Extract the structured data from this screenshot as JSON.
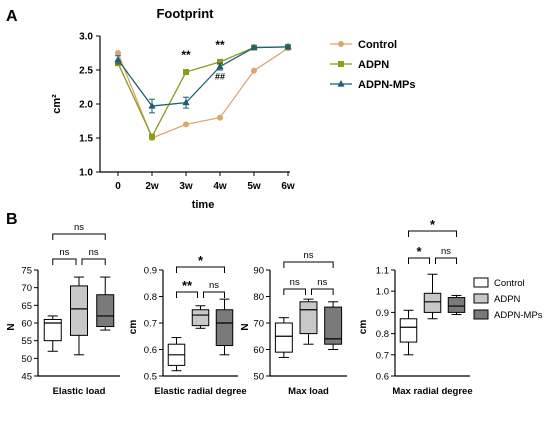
{
  "panel_a_letter": "A",
  "panel_b_letter": "B",
  "colors": {
    "control": "#D9A66F",
    "adpn": "#8C9A1E",
    "adpn_mps": "#1F5F75",
    "box_control": "#ffffff",
    "box_adpn": "#C8C8C8",
    "box_adpn_mps": "#7A7A7A"
  },
  "chart_data": [
    {
      "type": "line",
      "title": "Footprint",
      "xlabel": "time",
      "ylabel": "cm²",
      "categories": [
        "0",
        "2w",
        "3w",
        "4w",
        "5w",
        "6w"
      ],
      "ylim": [
        1.0,
        3.0
      ],
      "yticks": [
        "1.0",
        "1.5",
        "2.0",
        "2.5",
        "3.0"
      ],
      "legend_position": "right",
      "series": [
        {
          "name": "Control",
          "marker": "circle",
          "values": [
            2.75,
            1.5,
            1.7,
            1.8,
            2.49,
            2.82
          ]
        },
        {
          "name": "ADPN",
          "marker": "square",
          "values": [
            2.6,
            1.52,
            2.47,
            2.62,
            2.83,
            2.84
          ]
        },
        {
          "name": "ADPN-MPs",
          "marker": "triangle",
          "values": [
            2.65,
            1.97,
            2.02,
            2.55,
            2.83,
            2.84
          ],
          "errors": [
            0.06,
            0.1,
            0.08,
            0.05,
            0.02,
            0.02
          ]
        }
      ],
      "annotations": [
        {
          "category": "3w",
          "text": "**",
          "value": 2.72
        },
        {
          "category": "4w",
          "text": "**",
          "value": 2.87
        },
        {
          "category": "4w",
          "text": "##",
          "value": 2.42
        }
      ]
    },
    {
      "type": "box",
      "xlabel": "Elastic load",
      "ylabel": "N",
      "ylim": [
        45,
        75
      ],
      "yticks": [
        "45",
        "50",
        "55",
        "60",
        "65",
        "70",
        "75"
      ],
      "series": [
        {
          "name": "Control",
          "min": 52,
          "q1": 55,
          "median": 60,
          "q3": 61,
          "max": 62
        },
        {
          "name": "ADPN",
          "min": 51,
          "q1": 56.5,
          "median": 64,
          "q3": 70.5,
          "max": 73
        },
        {
          "name": "ADPN-MPs",
          "min": 58,
          "q1": 59,
          "median": 62,
          "q3": 68,
          "max": 73
        }
      ],
      "significance": [
        {
          "from": 0,
          "to": 1,
          "label": "ns"
        },
        {
          "from": 1,
          "to": 2,
          "label": "ns"
        },
        {
          "from": 0,
          "to": 2,
          "label": "ns"
        }
      ]
    },
    {
      "type": "box",
      "xlabel": "Elastic radial degree",
      "ylabel": "cm",
      "ylim": [
        0.5,
        0.9
      ],
      "yticks": [
        "0.5",
        "0.6",
        "0.7",
        "0.8",
        "0.9"
      ],
      "series": [
        {
          "name": "Control",
          "min": 0.52,
          "q1": 0.54,
          "median": 0.58,
          "q3": 0.62,
          "max": 0.645
        },
        {
          "name": "ADPN",
          "min": 0.68,
          "q1": 0.69,
          "median": 0.73,
          "q3": 0.75,
          "max": 0.765
        },
        {
          "name": "ADPN-MPs",
          "min": 0.58,
          "q1": 0.615,
          "median": 0.7,
          "q3": 0.75,
          "max": 0.79
        }
      ],
      "significance": [
        {
          "from": 0,
          "to": 1,
          "label": "**"
        },
        {
          "from": 1,
          "to": 2,
          "label": "ns"
        },
        {
          "from": 0,
          "to": 2,
          "label": "*"
        }
      ]
    },
    {
      "type": "box",
      "xlabel": "Max load",
      "ylabel": "N",
      "ylim": [
        50,
        90
      ],
      "yticks": [
        "50",
        "60",
        "70",
        "80",
        "90"
      ],
      "series": [
        {
          "name": "Control",
          "min": 57,
          "q1": 59,
          "median": 65,
          "q3": 70,
          "max": 72
        },
        {
          "name": "ADPN",
          "min": 62,
          "q1": 66,
          "median": 75,
          "q3": 78,
          "max": 79
        },
        {
          "name": "ADPN-MPs",
          "min": 60,
          "q1": 62,
          "median": 64,
          "q3": 76,
          "max": 78
        }
      ],
      "significance": [
        {
          "from": 0,
          "to": 1,
          "label": "ns"
        },
        {
          "from": 1,
          "to": 2,
          "label": "ns"
        },
        {
          "from": 0,
          "to": 2,
          "label": "ns"
        }
      ]
    },
    {
      "type": "box",
      "xlabel": "Max radial degree",
      "ylabel": "cm",
      "ylim": [
        0.6,
        1.1
      ],
      "yticks": [
        "0.6",
        "0.7",
        "0.8",
        "0.9",
        "1.0",
        "1.1"
      ],
      "series": [
        {
          "name": "Control",
          "min": 0.7,
          "q1": 0.76,
          "median": 0.83,
          "q3": 0.87,
          "max": 0.91
        },
        {
          "name": "ADPN",
          "min": 0.87,
          "q1": 0.9,
          "median": 0.95,
          "q3": 0.99,
          "max": 1.08
        },
        {
          "name": "ADPN-MPs",
          "min": 0.89,
          "q1": 0.9,
          "median": 0.93,
          "q3": 0.97,
          "max": 0.98
        }
      ],
      "significance": [
        {
          "from": 0,
          "to": 1,
          "label": "*"
        },
        {
          "from": 1,
          "to": 2,
          "label": "ns"
        },
        {
          "from": 0,
          "to": 2,
          "label": "*"
        }
      ]
    }
  ],
  "box_legend": [
    "Control",
    "ADPN",
    "ADPN-MPs"
  ]
}
